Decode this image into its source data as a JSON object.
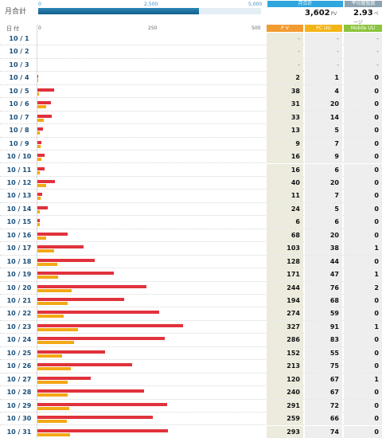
{
  "header": {
    "label": "月合計",
    "scale_ticks": [
      "0",
      "2,500",
      "5,000"
    ],
    "scale_max": 5000,
    "total_pv": 3602,
    "monthly_box_title": "月合計",
    "monthly_value": "3,602",
    "monthly_unit": "PV",
    "avg_box_title": "平均閲覧数",
    "avg_value": "2.93",
    "avg_unit": "ページ"
  },
  "columns": {
    "date": "日付",
    "axis_ticks": [
      "0",
      "250",
      "500"
    ],
    "pv": "P V",
    "pc_uu": "PC UU",
    "mobile_uu": "Mobile UU"
  },
  "chart_data": {
    "type": "bar",
    "orientation": "horizontal",
    "xlim": [
      0,
      500
    ],
    "categories": [
      "10 / 1",
      "10 / 2",
      "10 / 3",
      "10 / 4",
      "10 / 5",
      "10 / 6",
      "10 / 7",
      "10 / 8",
      "10 / 9",
      "10 / 10",
      "10 / 11",
      "10 / 12",
      "10 / 13",
      "10 / 14",
      "10 / 15",
      "10 / 16",
      "10 / 17",
      "10 / 18",
      "10 / 19",
      "10 / 20",
      "10 / 21",
      "10 / 22",
      "10 / 23",
      "10 / 24",
      "10 / 25",
      "10 / 26",
      "10 / 27",
      "10 / 28",
      "10 / 29",
      "10 / 30",
      "10 / 31"
    ],
    "series": [
      {
        "name": "P V",
        "color": "#e0323c",
        "values": [
          null,
          null,
          null,
          2,
          38,
          31,
          33,
          13,
          9,
          16,
          16,
          40,
          11,
          24,
          6,
          68,
          103,
          128,
          171,
          244,
          194,
          274,
          327,
          286,
          152,
          213,
          120,
          240,
          291,
          259,
          293
        ],
        "labels": [
          "-",
          "-",
          "-",
          "2",
          "38",
          "31",
          "33",
          "13",
          "9",
          "16",
          "16",
          "40",
          "11",
          "24",
          "6",
          "68",
          "103",
          "128",
          "171",
          "244",
          "194",
          "274",
          "327",
          "286",
          "152",
          "213",
          "120",
          "240",
          "291",
          "259",
          "293"
        ]
      },
      {
        "name": "PC UU",
        "color": "#f3a816",
        "values": [
          null,
          null,
          null,
          1,
          4,
          20,
          14,
          5,
          7,
          9,
          6,
          20,
          7,
          5,
          6,
          20,
          38,
          44,
          47,
          76,
          68,
          59,
          91,
          83,
          55,
          75,
          67,
          67,
          72,
          66,
          74
        ],
        "labels": [
          "-",
          "-",
          "-",
          "1",
          "4",
          "20",
          "14",
          "5",
          "7",
          "9",
          "6",
          "20",
          "7",
          "5",
          "6",
          "20",
          "38",
          "44",
          "47",
          "76",
          "68",
          "59",
          "91",
          "83",
          "55",
          "75",
          "67",
          "67",
          "72",
          "66",
          "74"
        ]
      },
      {
        "name": "Mobile UU",
        "labels": [
          "-",
          "-",
          "-",
          "0",
          "0",
          "0",
          "0",
          "0",
          "0",
          "0",
          "0",
          "0",
          "0",
          "0",
          "0",
          "0",
          "1",
          "0",
          "1",
          "2",
          "0",
          "0",
          "1",
          "0",
          "0",
          "0",
          "1",
          "0",
          "0",
          "0",
          "0"
        ]
      }
    ]
  }
}
